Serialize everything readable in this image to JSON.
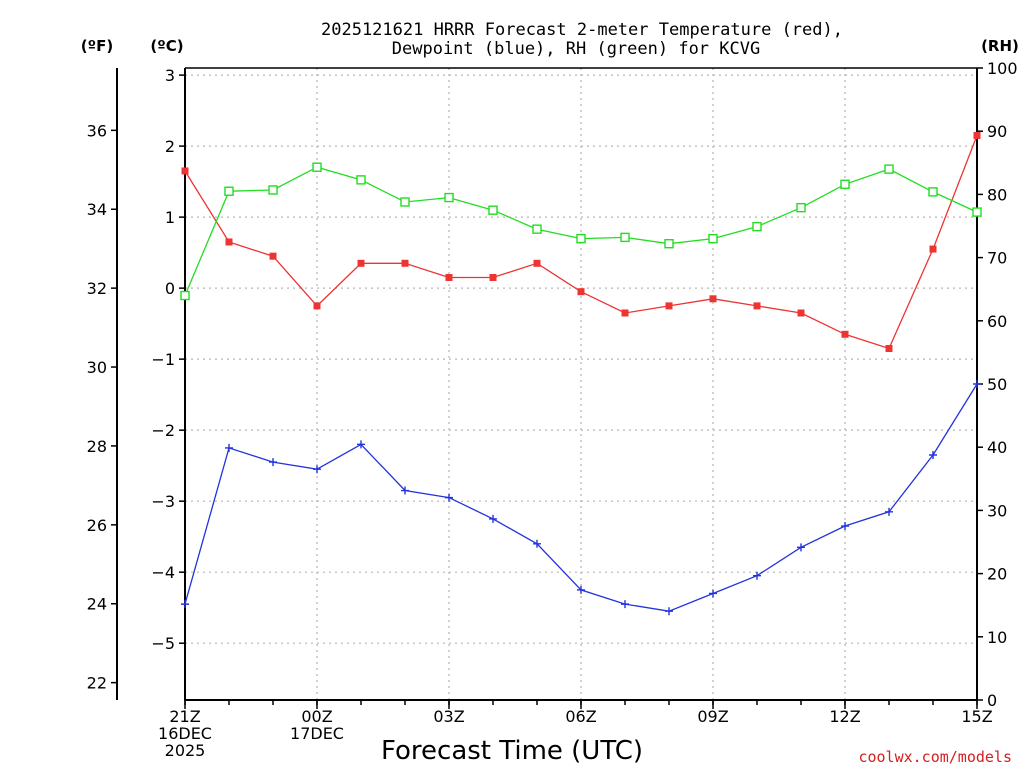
{
  "chart_data": {
    "type": "line",
    "title_line1": "2025121621 HRRR Forecast 2-meter Temperature (red),",
    "title_line2": "Dewpoint (blue), RH (green) for KCVG",
    "xlabel": "Forecast Time (UTC)",
    "credit": "coolwx.com/models",
    "units": {
      "fahrenheit": "(ºF)",
      "celsius": "(ºC)",
      "rh": "(RH)"
    },
    "x_hours": [
      0,
      1,
      2,
      3,
      4,
      5,
      6,
      7,
      8,
      9,
      10,
      11,
      12,
      13,
      14,
      15,
      16,
      17,
      18
    ],
    "x_ticks": [
      {
        "hour": 0,
        "lines": [
          "21Z",
          "16DEC",
          "2025"
        ]
      },
      {
        "hour": 3,
        "lines": [
          "00Z",
          "17DEC"
        ]
      },
      {
        "hour": 6,
        "lines": [
          "03Z"
        ]
      },
      {
        "hour": 9,
        "lines": [
          "06Z"
        ]
      },
      {
        "hour": 12,
        "lines": [
          "09Z"
        ]
      },
      {
        "hour": 15,
        "lines": [
          "12Z"
        ]
      },
      {
        "hour": 18,
        "lines": [
          "15Z"
        ]
      }
    ],
    "xlim": [
      0,
      18
    ],
    "celsius_axis": {
      "range": [
        -5.8,
        3.1
      ],
      "ticks": [
        -5,
        -4,
        -3,
        -2,
        -1,
        0,
        1,
        2,
        3
      ],
      "labels": [
        "−5",
        "−4",
        "−3",
        "−2",
        "−1",
        "0",
        "1",
        "2",
        "3"
      ]
    },
    "fahrenheit_axis": {
      "range": [
        21.56,
        37.58
      ],
      "ticks": [
        22,
        24,
        26,
        28,
        30,
        32,
        34,
        36
      ],
      "labels": [
        "22",
        "24",
        "26",
        "28",
        "30",
        "32",
        "34",
        "36"
      ]
    },
    "rh_axis": {
      "range": [
        0,
        100
      ],
      "ticks": [
        0,
        10,
        20,
        30,
        40,
        50,
        60,
        70,
        80,
        90,
        100
      ],
      "labels": [
        "0",
        "10",
        "20",
        "30",
        "40",
        "50",
        "60",
        "70",
        "80",
        "90",
        "100"
      ]
    },
    "grid": true,
    "series": [
      {
        "name": "Temperature",
        "axis": "celsius",
        "color": "#ee3333",
        "marker": "filled-square",
        "values": [
          1.65,
          0.65,
          0.45,
          -0.25,
          0.35,
          0.35,
          0.15,
          0.15,
          0.35,
          -0.05,
          -0.35,
          -0.25,
          -0.15,
          -0.25,
          -0.35,
          -0.65,
          -0.85,
          0.55,
          2.15
        ]
      },
      {
        "name": "Dewpoint",
        "axis": "celsius",
        "color": "#2233dd",
        "marker": "plus",
        "values": [
          -4.45,
          -2.25,
          -2.45,
          -2.55,
          -2.2,
          -2.85,
          -2.95,
          -3.25,
          -3.6,
          -4.25,
          -4.45,
          -4.55,
          -4.3,
          -4.05,
          -3.65,
          -3.35,
          -3.15,
          -2.35,
          -1.35
        ]
      },
      {
        "name": "RH",
        "axis": "rh",
        "color": "#22dd22",
        "marker": "open-square",
        "values": [
          64,
          80.5,
          80.7,
          84.3,
          82.3,
          78.8,
          79.5,
          77.5,
          74.5,
          73,
          73.2,
          72.2,
          73,
          74.9,
          77.9,
          81.6,
          84,
          80.4,
          77.2
        ]
      }
    ]
  }
}
